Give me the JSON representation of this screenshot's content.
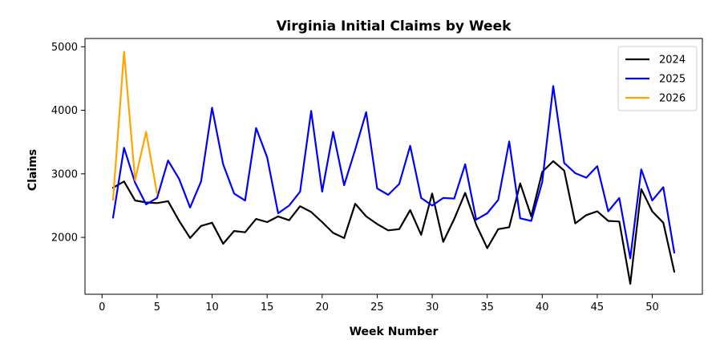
{
  "chart_data": {
    "type": "line",
    "title": "Virginia Initial Claims by Week",
    "xlabel": "Week Number",
    "ylabel": "Claims",
    "xlim": [
      -1.55,
      54.55
    ],
    "ylim": [
      1105,
      5130
    ],
    "xticks": [
      0,
      5,
      10,
      15,
      20,
      25,
      30,
      35,
      40,
      45,
      50
    ],
    "yticks": [
      2000,
      3000,
      4000,
      5000
    ],
    "grid": false,
    "legend_position": "top-right",
    "series": [
      {
        "name": "2024",
        "color": "#000000",
        "x": [
          1,
          2,
          3,
          4,
          5,
          6,
          7,
          8,
          9,
          10,
          11,
          12,
          13,
          14,
          15,
          16,
          17,
          18,
          19,
          20,
          21,
          22,
          23,
          24,
          25,
          26,
          27,
          28,
          29,
          30,
          31,
          32,
          33,
          34,
          35,
          36,
          37,
          38,
          39,
          40,
          41,
          42,
          43,
          44,
          45,
          46,
          47,
          48,
          49,
          50,
          51,
          52
        ],
        "y": [
          2780,
          2880,
          2580,
          2550,
          2540,
          2570,
          2260,
          1990,
          2180,
          2230,
          1900,
          2100,
          2080,
          2290,
          2240,
          2330,
          2270,
          2490,
          2400,
          2240,
          2070,
          1990,
          2530,
          2330,
          2210,
          2110,
          2130,
          2430,
          2040,
          2690,
          1930,
          2290,
          2700,
          2200,
          1830,
          2130,
          2160,
          2850,
          2330,
          3030,
          3200,
          3050,
          2220,
          2350,
          2410,
          2260,
          2250,
          1270,
          2760,
          2410,
          2230,
          1460
        ]
      },
      {
        "name": "2025",
        "color": "#0000ff",
        "x": [
          1,
          2,
          3,
          4,
          5,
          6,
          7,
          8,
          9,
          10,
          11,
          12,
          13,
          14,
          15,
          16,
          17,
          18,
          19,
          20,
          21,
          22,
          23,
          24,
          25,
          26,
          27,
          28,
          29,
          30,
          31,
          32,
          33,
          34,
          35,
          36,
          37,
          38,
          39,
          40,
          41,
          42,
          43,
          44,
          45,
          46,
          47,
          48,
          49,
          50,
          51,
          52
        ],
        "y": [
          2310,
          3410,
          2860,
          2520,
          2620,
          3210,
          2920,
          2470,
          2880,
          4040,
          3150,
          2690,
          2580,
          3720,
          3260,
          2380,
          2500,
          2720,
          3990,
          2720,
          3660,
          2820,
          3380,
          3970,
          2770,
          2670,
          2840,
          3440,
          2620,
          2500,
          2620,
          2610,
          3150,
          2280,
          2380,
          2590,
          3510,
          2300,
          2260,
          2870,
          4380,
          3170,
          3010,
          2940,
          3120,
          2410,
          2620,
          1670,
          3070,
          2580,
          2790,
          1760
        ]
      },
      {
        "name": "2026",
        "color": "#ffa500",
        "x": [
          1,
          2,
          3,
          4,
          5
        ],
        "y": [
          2590,
          4920,
          2900,
          3660,
          2690
        ]
      }
    ]
  }
}
